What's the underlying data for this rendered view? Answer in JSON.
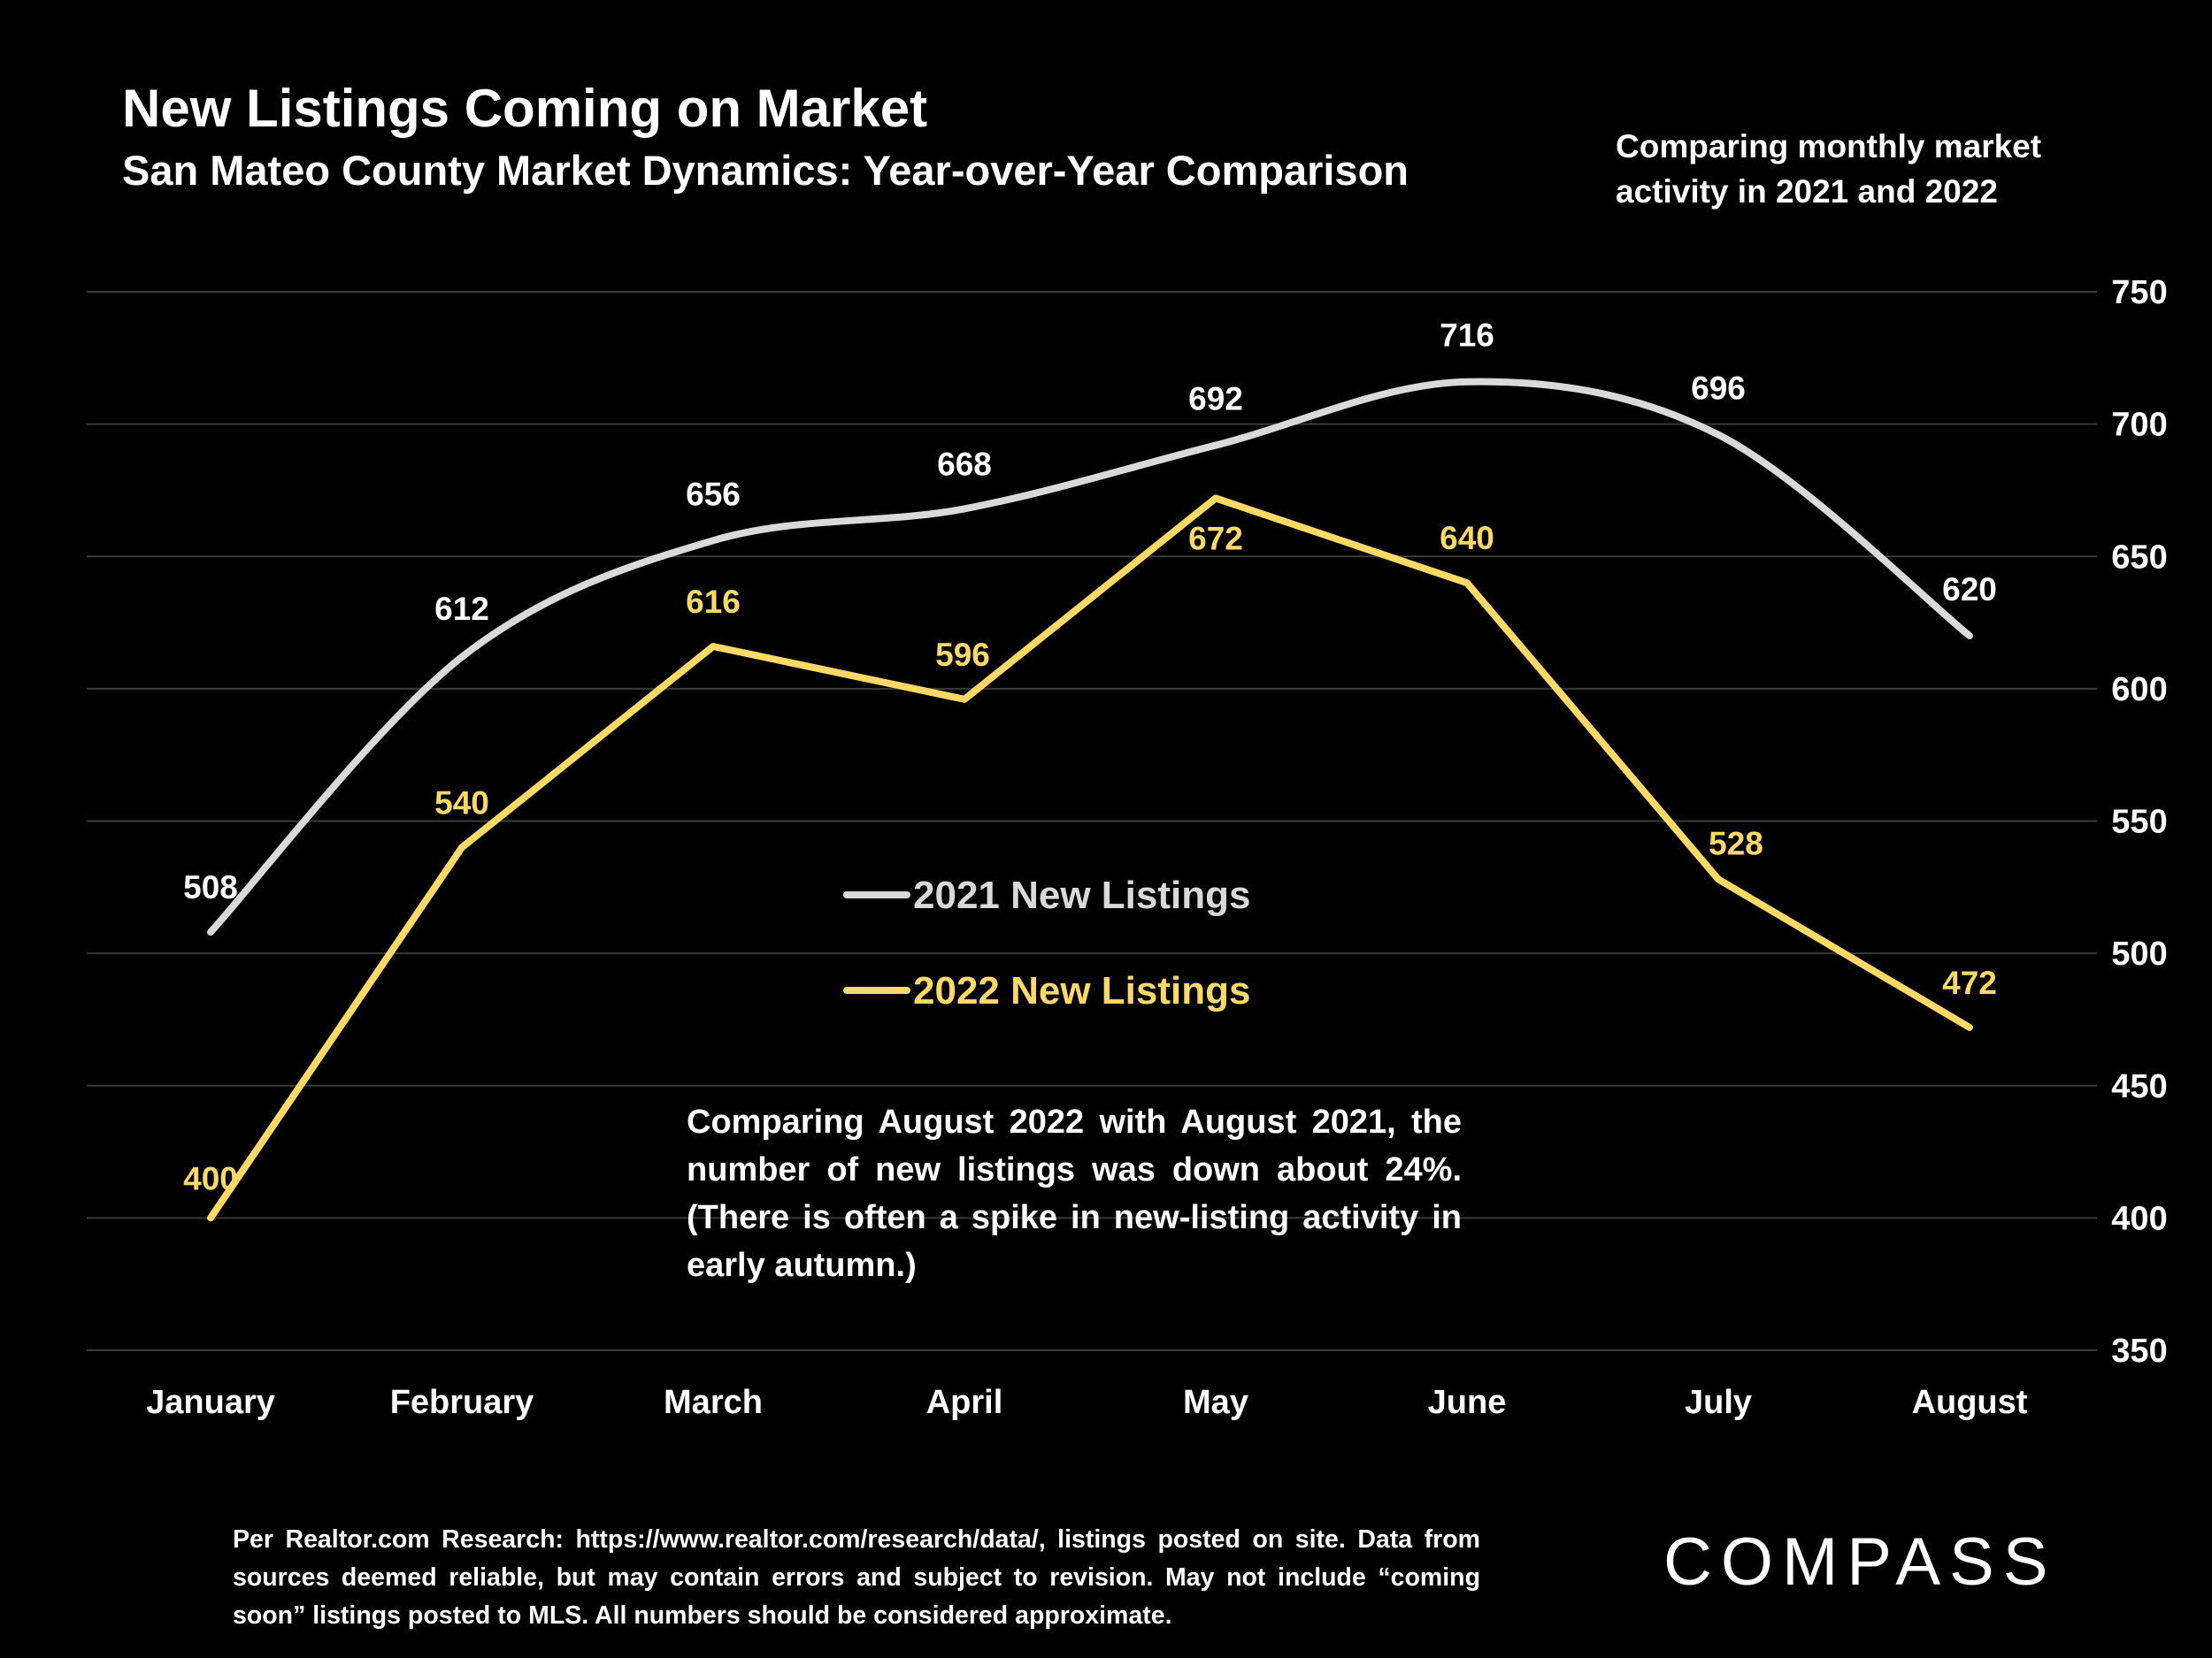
{
  "header": {
    "title": "New Listings Coming on Market",
    "subtitle": "San Mateo County Market Dynamics: Year-over-Year Comparison",
    "side_note": "Comparing monthly market activity in 2021 and 2022"
  },
  "annotation": "Comparing August 2022 with August 2021, the number of new listings was down about 24%. (There is often a spike in new-listing activity in early autumn.)",
  "footer": {
    "source_note": "Per Realtor.com Research: https://www.realtor.com/research/data/, listings posted on site. Data from sources deemed reliable, but may contain errors and subject to revision. May not include “coming soon” listings posted to MLS. All numbers should be considered approximate."
  },
  "logo": {
    "text": "COMPASS"
  },
  "colors": {
    "background": "#000000",
    "series_2021": "#d9d9d9",
    "series_2022": "#ffd966",
    "grid": "#3a3a3a",
    "text": "#ffffff"
  },
  "chart_data": {
    "type": "line",
    "categories": [
      "January",
      "February",
      "March",
      "April",
      "May",
      "June",
      "July",
      "August"
    ],
    "series": [
      {
        "name": "2021 New Listings",
        "values": [
          508,
          612,
          656,
          668,
          692,
          716,
          696,
          620
        ],
        "color": "#d9d9d9",
        "smooth": true
      },
      {
        "name": "2022 New Listings",
        "values": [
          400,
          540,
          616,
          596,
          672,
          640,
          528,
          472
        ],
        "color": "#ffd966",
        "smooth": false
      }
    ],
    "ylim": [
      350,
      750
    ],
    "yticks": [
      350,
      400,
      450,
      500,
      550,
      600,
      650,
      700,
      750
    ],
    "y_axis_side": "right",
    "grid": true,
    "legend_position": "center",
    "data_labels": true
  }
}
